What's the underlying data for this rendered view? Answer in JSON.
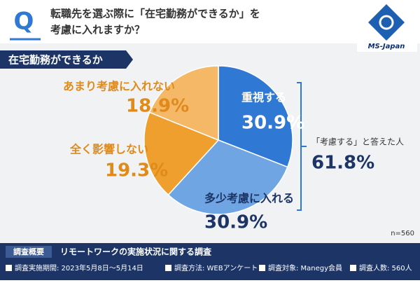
{
  "header": {
    "q": "Q",
    "question_lines": [
      "転職先を選ぶ際に「在宅勤務ができるか」を",
      "考慮に入れますか？"
    ],
    "logo": "MS-Japan"
  },
  "chart_data": {
    "type": "pie",
    "subtitle": "在宅勤務ができるか",
    "categories": [
      "重視する",
      "多少考慮に入れる",
      "全く影響しない",
      "あまり考慮に入れない"
    ],
    "values": [
      30.9,
      30.9,
      19.3,
      18.9
    ],
    "value_labels": [
      "30.9%",
      "30.9%",
      "19.3%",
      "18.9%"
    ],
    "colors": [
      "#2f78d4",
      "#6fa5e3",
      "#ef9f2e",
      "#f4b866"
    ],
    "annotation": {
      "text": "「考慮する」と答えた人",
      "value_label": "61.8%"
    },
    "note": "n=560"
  },
  "footer": {
    "title": "調査概要",
    "name": "リモートワークの実施状況に関する調査",
    "items": [
      "調査実施期間: 2023年5月8日～5月14日",
      "調査方法: WEBアンケート",
      "調査対象: Manegy会員",
      "調査人数: 560人"
    ]
  }
}
